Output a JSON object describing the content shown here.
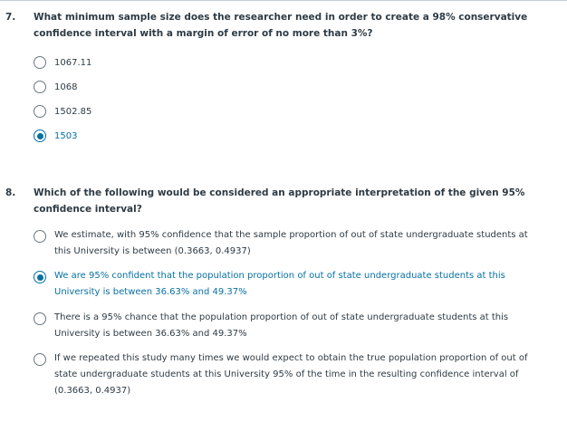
{
  "q7": {
    "number": "7.",
    "text": "What minimum sample size does the researcher need in order to create a 98% conservative confidence interval with a margin of error of no more than 3%?",
    "options": [
      {
        "label": "1067.11",
        "selected": false
      },
      {
        "label": "1068",
        "selected": false
      },
      {
        "label": "1502.85",
        "selected": false
      },
      {
        "label": "1503",
        "selected": true
      }
    ]
  },
  "q8": {
    "number": "8.",
    "text": "Which of the following would be considered an appropriate interpretation of the given 95% confidence interval?",
    "options": [
      {
        "label": "We estimate, with 95% confidence that the sample proportion of out of state undergraduate students at this University is between (0.3663, 0.4937)",
        "selected": false
      },
      {
        "label": "We are 95% confident that the population proportion of out of state undergraduate students at this University is between 36.63% and 49.37%",
        "selected": true
      },
      {
        "label": "There is a 95% chance that the population proportion of out of state undergraduate students at this University is between 36.63% and 49.37%",
        "selected": false
      },
      {
        "label": "If we repeated this study many times we would expect to obtain the true population proportion of out of state undergraduate students at this University 95% of the time in the resulting confidence interval of (0.3663, 0.4937)",
        "selected": false
      }
    ]
  },
  "colors": {
    "selected": "#0770a3",
    "text": "#2d3b45",
    "radio_border": "#6b7780"
  }
}
